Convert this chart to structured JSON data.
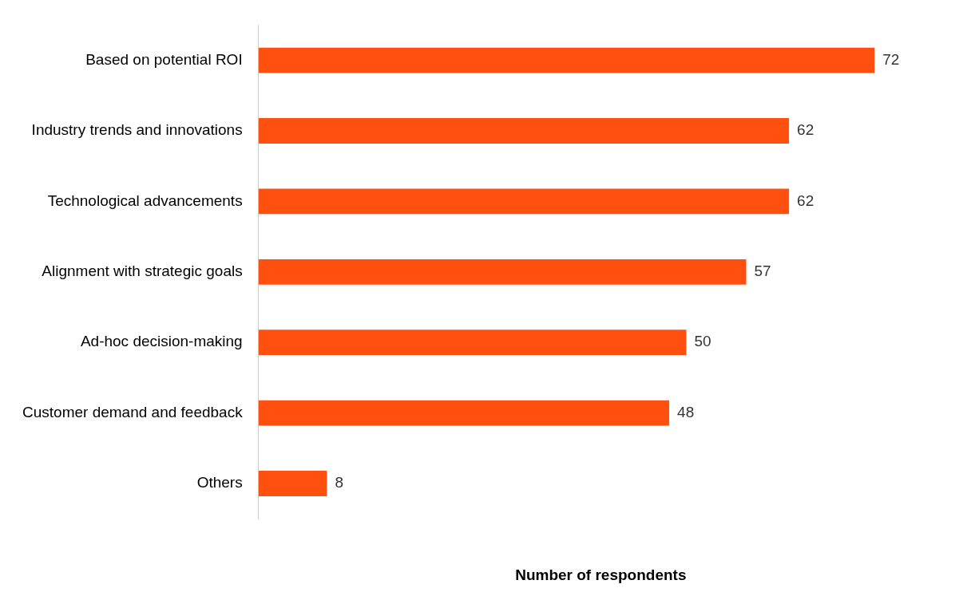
{
  "chart_data": {
    "type": "bar",
    "orientation": "horizontal",
    "xlabel": "Number of respondents",
    "categories": [
      "Based on potential ROI",
      "Industry trends and innovations",
      "Technological advancements",
      "Alignment with strategic goals",
      "Ad-hoc decision-making",
      "Customer demand and feedback",
      "Others"
    ],
    "values": [
      72,
      62,
      62,
      57,
      50,
      48,
      8
    ],
    "color": "#ff5010",
    "data_labels": true,
    "grid": false,
    "tick_labels": "y"
  }
}
